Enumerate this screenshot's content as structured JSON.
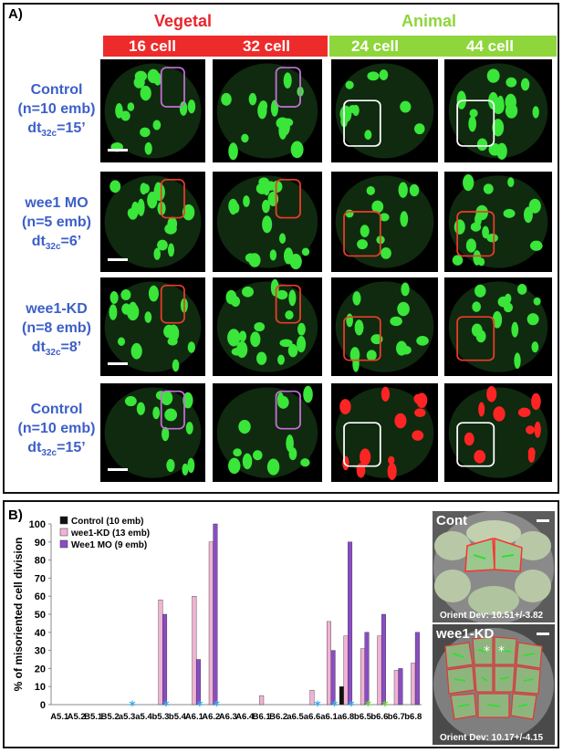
{
  "panelA": {
    "label": "A)",
    "groups": [
      {
        "label": "Vegetal",
        "color": "#e8252b"
      },
      {
        "label": "Animal",
        "color": "#8ed63b"
      }
    ],
    "stages": [
      "16 cell",
      "32 cell",
      "24 cell",
      "44 cell"
    ],
    "stage_colors": [
      "#ee2b2b",
      "#ee2b2b",
      "#8ed63b",
      "#8ed63b"
    ],
    "rows": [
      {
        "name": "Control",
        "n": "(n=10 emb)",
        "dt_prefix": "dt",
        "dt_sub": "32c",
        "dt_value": "=15’"
      },
      {
        "name": "wee1 MO",
        "n": "(n=5 emb)",
        "dt_prefix": "dt",
        "dt_sub": "32c",
        "dt_value": "=6’"
      },
      {
        "name": "wee1-KD",
        "n": "(n=8 emb)",
        "dt_prefix": "dt",
        "dt_sub": "32c",
        "dt_value": "=8’"
      },
      {
        "name": "Control",
        "n": "(n=10 emb)",
        "dt_prefix": "dt",
        "dt_sub": "32c",
        "dt_value": "=15’"
      }
    ]
  },
  "panelB": {
    "label": "B)",
    "side_panels": [
      {
        "title": "Cont",
        "dev": "Orient Dev: 10.51+/-3.82"
      },
      {
        "title": "wee1-KD",
        "dev": "Orient Dev: 10.17+/-4.15"
      }
    ]
  },
  "chart_data": {
    "type": "bar",
    "ylabel": "% of misoriented cell division",
    "ylim": [
      0,
      100
    ],
    "yticks": [
      0,
      10,
      20,
      30,
      40,
      50,
      60,
      70,
      80,
      90,
      100
    ],
    "categories": [
      "A5.1",
      "A5.2",
      "B5.1",
      "B5.2",
      "a5.3",
      "a5.4",
      "b5.3",
      "b5.4",
      "A6.1",
      "A6.2",
      "A6.3",
      "A6.4",
      "B6.1",
      "B6.2",
      "a6.5",
      "a6.6",
      "a6.1",
      "a6.8",
      "b6.5",
      "b6.6",
      "b6.7",
      "b6.8"
    ],
    "star_categories": [
      4,
      6,
      8,
      9,
      15,
      16,
      17,
      18,
      19
    ],
    "star_colors": [
      "#38a8e8",
      "#38a8e8",
      "#38a8e8",
      "#38a8e8",
      "#38a8e8",
      "#38a8e8",
      "#38a8e8",
      "#6fd33b",
      "#6fd33b"
    ],
    "series": [
      {
        "name": "Control (10 emb)",
        "color": "#111111",
        "values": [
          0,
          0,
          0,
          0,
          0,
          0,
          0,
          0,
          0,
          0,
          0,
          0,
          0,
          0,
          0,
          0,
          0,
          10,
          0,
          0,
          0,
          0
        ]
      },
      {
        "name": "wee1-KD (13 emb)",
        "color": "#f1b3d4",
        "values": [
          0,
          0,
          0,
          0,
          0,
          0,
          58,
          0,
          60,
          90,
          0,
          0,
          5,
          0,
          0,
          8,
          46,
          38,
          31,
          38,
          19,
          23
        ]
      },
      {
        "name": "Wee1 MO (9 emb)",
        "color": "#8a4cc4",
        "values": [
          0,
          0,
          0,
          0,
          0,
          0,
          50,
          0,
          25,
          100,
          0,
          0,
          0,
          0,
          0,
          0,
          30,
          90,
          40,
          50,
          20,
          40
        ]
      }
    ]
  }
}
